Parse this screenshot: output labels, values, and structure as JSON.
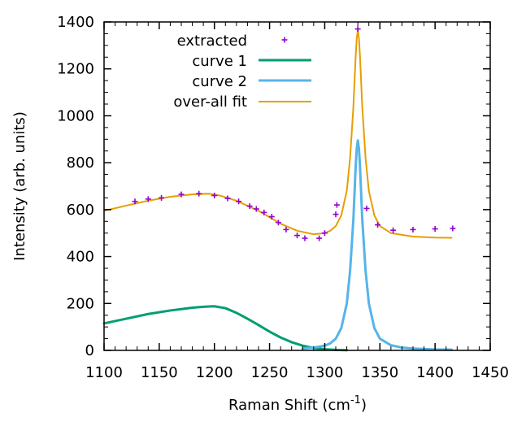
{
  "chart_data": {
    "type": "line",
    "title": "",
    "xlabel": "Raman Shift (cm",
    "xlabel_sup": "-1",
    "xlabel_close": ")",
    "ylabel": "Intensity (arb. units)",
    "xlim": [
      1100,
      1450
    ],
    "ylim": [
      0,
      1400
    ],
    "xticks": [
      "1100",
      "1150",
      "1200",
      "1250",
      "1300",
      "1350",
      "1400",
      "1450"
    ],
    "yticks": [
      "0",
      "200",
      "400",
      "600",
      "800",
      "1000",
      "1200",
      "1400"
    ],
    "grid": false,
    "legend_position": "top-left",
    "colors": {
      "extracted": "#9400d3",
      "curve1": "#009e73",
      "curve2": "#56b4e9",
      "fit": "#e69f00"
    },
    "legend": {
      "extracted": "extracted",
      "curve1": "curve 1",
      "curve2": "curve 2",
      "fit": "over-all fit"
    },
    "series": [
      {
        "name": "extracted",
        "kind": "points",
        "x": [
          1128,
          1140,
          1152,
          1170,
          1186,
          1200,
          1212,
          1222,
          1232,
          1238,
          1245,
          1252,
          1258,
          1265,
          1275,
          1282,
          1295,
          1300,
          1310,
          1311,
          1330,
          1338,
          1348,
          1362,
          1380,
          1400,
          1416
        ],
        "y": [
          635,
          645,
          650,
          665,
          668,
          660,
          648,
          635,
          615,
          603,
          588,
          570,
          545,
          515,
          490,
          478,
          478,
          500,
          580,
          620,
          1370,
          605,
          535,
          512,
          515,
          518,
          520
        ]
      },
      {
        "name": "curve 1",
        "kind": "line",
        "x": [
          1100,
          1120,
          1140,
          1160,
          1180,
          1190,
          1200,
          1210,
          1220,
          1230,
          1240,
          1250,
          1260,
          1270,
          1280,
          1290,
          1300,
          1310,
          1320
        ],
        "y": [
          115,
          135,
          155,
          170,
          182,
          186,
          188,
          180,
          160,
          135,
          108,
          80,
          55,
          35,
          20,
          10,
          5,
          2,
          1
        ]
      },
      {
        "name": "curve 2",
        "kind": "line",
        "x": [
          1280,
          1290,
          1300,
          1305,
          1310,
          1315,
          1320,
          1323,
          1326,
          1328,
          1329,
          1330,
          1331,
          1332,
          1334,
          1337,
          1340,
          1345,
          1350,
          1360,
          1370,
          1380,
          1400,
          1415
        ],
        "y": [
          8,
          12,
          20,
          30,
          50,
          95,
          200,
          340,
          560,
          780,
          860,
          895,
          860,
          780,
          560,
          340,
          200,
          95,
          50,
          22,
          12,
          8,
          4,
          3
        ]
      },
      {
        "name": "over-all fit",
        "kind": "line",
        "x": [
          1100,
          1120,
          1140,
          1160,
          1180,
          1195,
          1205,
          1220,
          1240,
          1260,
          1275,
          1290,
          1300,
          1305,
          1310,
          1315,
          1320,
          1323,
          1326,
          1328,
          1329,
          1330,
          1331,
          1332,
          1334,
          1337,
          1340,
          1345,
          1350,
          1360,
          1380,
          1400,
          1415
        ],
        "y": [
          595,
          617,
          638,
          655,
          665,
          668,
          660,
          638,
          595,
          540,
          510,
          495,
          500,
          510,
          530,
          575,
          680,
          820,
          1040,
          1250,
          1330,
          1365,
          1330,
          1250,
          1040,
          820,
          680,
          575,
          530,
          500,
          485,
          481,
          480
        ]
      }
    ]
  }
}
